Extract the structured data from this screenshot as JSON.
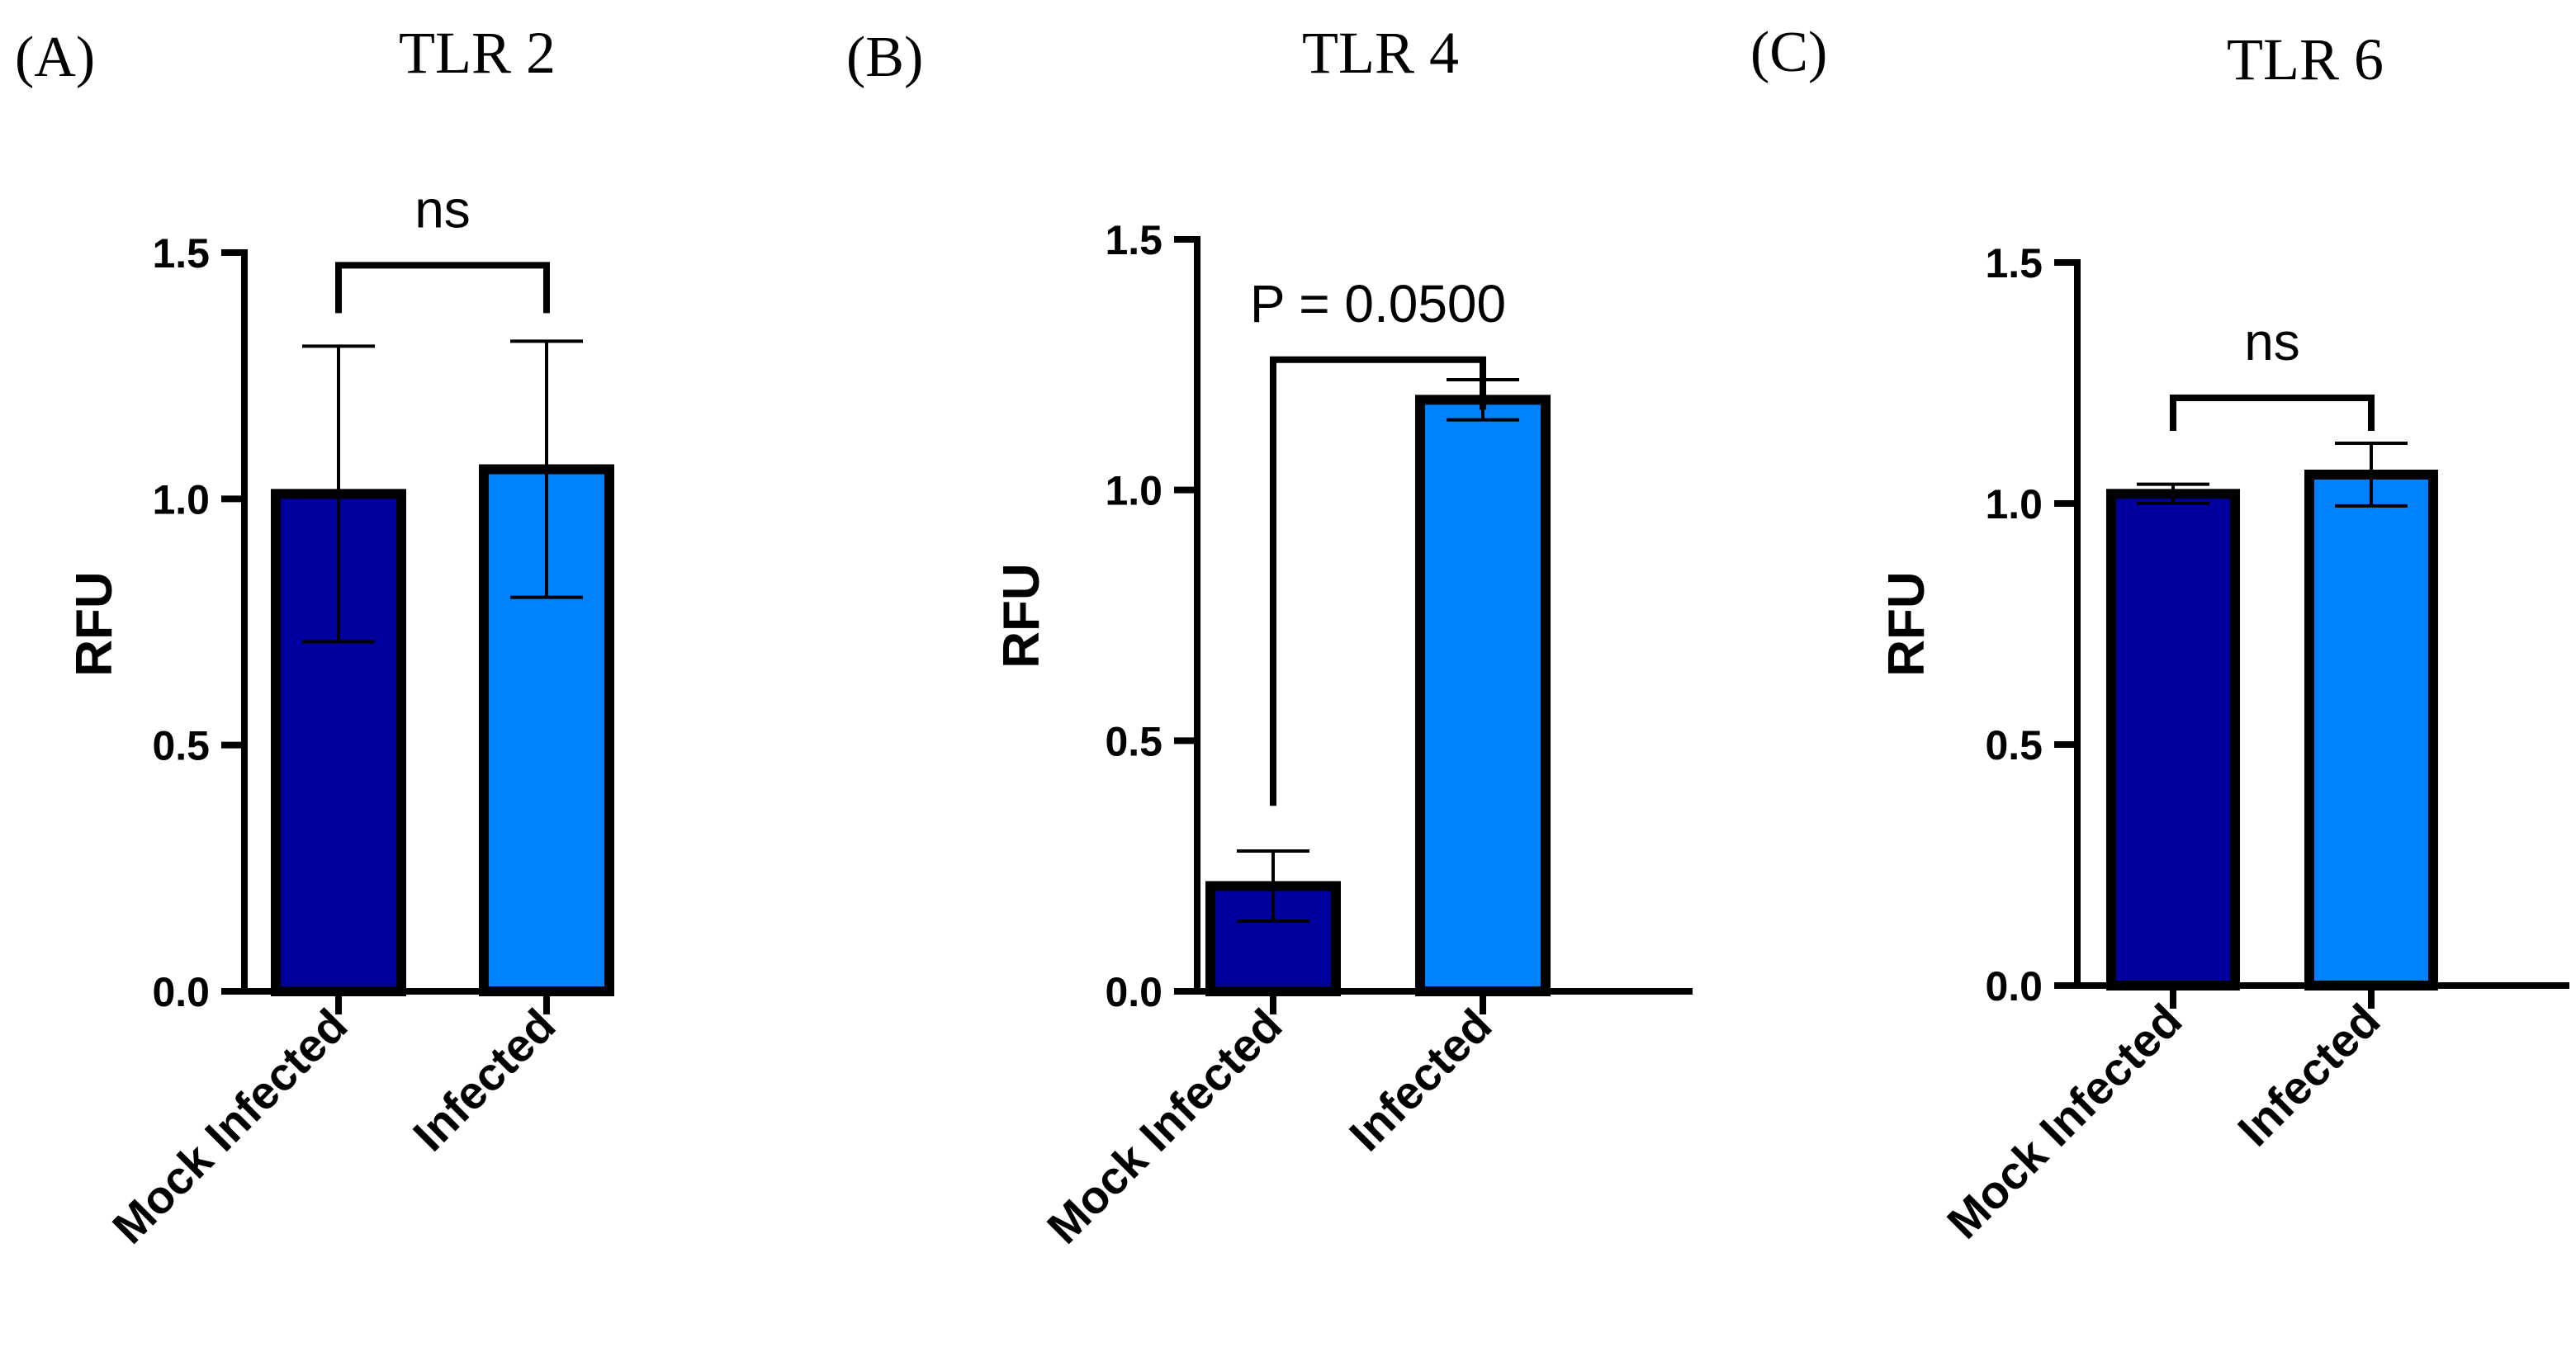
{
  "chart_data": [
    {
      "type": "bar",
      "panel": "(A)",
      "title": "TLR 2",
      "ylabel": "RFU",
      "xlabel": "",
      "categories": [
        "Mock Infected",
        "Infected"
      ],
      "values": [
        1.01,
        1.06
      ],
      "errors": [
        0.3,
        0.26
      ],
      "colors": [
        "#00009E",
        "#0082FF"
      ],
      "ylim": [
        0,
        1.5
      ],
      "yticks": [
        "0.0",
        "0.5",
        "1.0",
        "1.5"
      ],
      "significance": "ns",
      "grid": false
    },
    {
      "type": "bar",
      "panel": "(B)",
      "title": "TLR 4",
      "ylabel": "RFU",
      "xlabel": "",
      "categories": [
        "Mock Infected",
        "Infected"
      ],
      "values": [
        0.21,
        1.18
      ],
      "errors": [
        0.07,
        0.04
      ],
      "colors": [
        "#00009E",
        "#0082FF"
      ],
      "ylim": [
        0,
        1.5
      ],
      "yticks": [
        "0.0",
        "0.5",
        "1.0",
        "1.5"
      ],
      "significance": "P = 0.0500",
      "grid": false
    },
    {
      "type": "bar",
      "panel": "(C)",
      "title": "TLR 6",
      "ylabel": "RFU",
      "xlabel": "",
      "categories": [
        "Mock Infected",
        "Infected"
      ],
      "values": [
        1.02,
        1.06
      ],
      "errors": [
        0.02,
        0.065
      ],
      "colors": [
        "#00009E",
        "#0082FF"
      ],
      "ylim": [
        0,
        1.5
      ],
      "yticks": [
        "0.0",
        "0.5",
        "1.0",
        "1.5"
      ],
      "significance": "ns",
      "grid": false
    }
  ]
}
